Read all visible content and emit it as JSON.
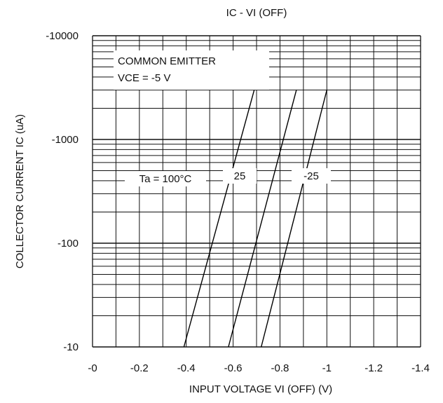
{
  "chart_data": {
    "type": "line",
    "title": "IC - VI (OFF)",
    "xlabel": "INPUT VOLTAGE   VI (OFF) (V)",
    "ylabel": "COLLECTOR CURRENT   IC (uA)",
    "x_scale": "linear",
    "y_scale": "log",
    "xlim": [
      0,
      -1.4
    ],
    "ylim": [
      -10,
      -10000
    ],
    "x_ticks": [
      0,
      -0.2,
      -0.4,
      -0.6,
      -0.8,
      -1,
      -1.2,
      -1.4
    ],
    "x_tick_labels": [
      "-0",
      "-0.2",
      "-0.4",
      "-0.6",
      "-0.8",
      "-1",
      "-1.2",
      "-1.4"
    ],
    "y_ticks": [
      -10,
      -100,
      -1000,
      -10000
    ],
    "y_tick_labels": [
      "-10",
      "-100",
      "-1000",
      "-10000"
    ],
    "grid": true,
    "annotations": [
      "COMMON EMITTER",
      "VCE = -5 V"
    ],
    "series": [
      {
        "name": "Ta = 100°C",
        "x": [
          -0.39,
          -0.69
        ],
        "y": [
          -10,
          -3000
        ]
      },
      {
        "name": "25",
        "x": [
          -0.58,
          -0.87
        ],
        "y": [
          -10,
          -3000
        ]
      },
      {
        "name": "-25",
        "x": [
          -0.72,
          -1.0
        ],
        "y": [
          -10,
          -3000
        ]
      }
    ]
  }
}
